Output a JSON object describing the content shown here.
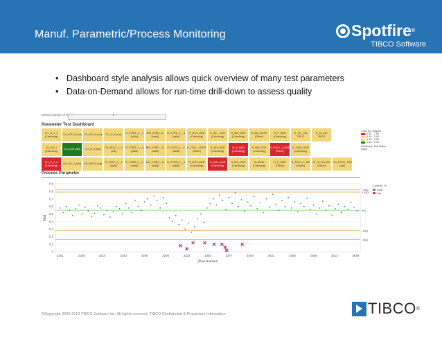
{
  "header": {
    "title": "Manuf. Parametric/Process Monitoring",
    "logo_main": "Spotfire",
    "logo_reg": "®",
    "logo_sub": "TIBCO Software"
  },
  "bullets": [
    "Dashboard style analysis allows quick overview of many test parameters",
    "Data-on-Demand allows for run-time drill-down to assess quality"
  ],
  "dashboard": {
    "select_label": "Select number of sigma:",
    "slider_value": "3",
    "title": "Parameter Test Dashboard",
    "tiles": [
      [
        {
          "t": "CH_N_1_2 (Checking)",
          "c": "y"
        },
        {
          "t": "CH_HTF_5 (cat)",
          "c": "y"
        },
        {
          "t": "CH_NO_6 (cat)",
          "c": "y"
        },
        {
          "t": "CH_P_6 (cat)",
          "c": "y"
        },
        {
          "t": "R_VTRD_2__4 (Valid)",
          "c": "y"
        },
        {
          "t": "MH_VTRD_12 (Valid)",
          "c": "y"
        },
        {
          "t": "R_VTRD_2__4 (Valid)",
          "c": "y"
        },
        {
          "t": "R_HTR_DDR (Checking)",
          "c": "y"
        },
        {
          "t": "R_HE__DDR (Checking)",
          "c": "y"
        },
        {
          "t": "R_MD_DDR (Checking)",
          "c": "y"
        },
        {
          "t": "R_MD_BUTR (Other)",
          "c": "y"
        },
        {
          "t": "R_P_DDR (Checking)",
          "c": "y"
        },
        {
          "t": "R_TA__BA TBCO",
          "c": "y"
        },
        {
          "t": "R_TA_BH TBCO",
          "c": "y"
        },
        {
          "t": "",
          "c": "blank"
        }
      ],
      [
        {
          "t": "CH_N1_2 (Checking)",
          "c": "y"
        },
        {
          "t": "CH_LDD (cat)",
          "c": "g"
        },
        {
          "t": "CH_R_6 (cat)",
          "c": "y"
        },
        {
          "t": "CH_POLY_1_2 (cat)",
          "c": "y"
        },
        {
          "t": "R_VTRD_2__4 (Valid)",
          "c": "y"
        },
        {
          "t": "MH_VTRF__12 (Valid)",
          "c": "y"
        },
        {
          "t": "P_VTRF_2__4 (Valid)",
          "c": "y"
        },
        {
          "t": "R_CDD__SPDR (Other)",
          "c": "y"
        },
        {
          "t": "R_NR_DDR (Checking)",
          "c": "y"
        },
        {
          "t": "R_N_DDR (Checking)",
          "c": "r"
        },
        {
          "t": "R_NM_DDR (Checking)",
          "c": "y"
        },
        {
          "t": "R_POLY_1_DDR (Other)",
          "c": "r"
        },
        {
          "t": "R_VMA_DDR (Checking)",
          "c": "y"
        },
        {
          "t": "",
          "c": "blank"
        },
        {
          "t": "",
          "c": "blank"
        }
      ],
      [
        {
          "t": "CH_N_1_2 (Checking)",
          "c": "r"
        },
        {
          "t": "CH_M1_2 (cat)",
          "c": "y"
        },
        {
          "t": "CH_NPLS (cat)",
          "c": "y"
        },
        {
          "t": "R_VTRF_2__4 (Valid)",
          "c": "y"
        },
        {
          "t": "R_VTRD_2__4 (Valid)",
          "c": "y"
        },
        {
          "t": "MH_VTRD__12 (Valid)",
          "c": "y"
        },
        {
          "t": "R_VTRD_2__4 (Valid)",
          "c": "y"
        },
        {
          "t": "R_NTR_DDR (Checking)",
          "c": "y"
        },
        {
          "t": "R_LDD_DDR (Checking)",
          "c": "r"
        },
        {
          "t": "R_MD_DDR (Checking)",
          "c": "y"
        },
        {
          "t": "R_NWID (Checking)",
          "c": "y"
        },
        {
          "t": "R_P_DDR (Other)",
          "c": "y"
        },
        {
          "t": "R_POLY_1_DD (Other)",
          "c": "y"
        },
        {
          "t": "R_TA_BH_DD (Other)",
          "c": "y"
        },
        {
          "t": "CH_ETCH_TRD (cat)",
          "c": "y"
        }
      ]
    ],
    "legend_title": "Color by: Oligons",
    "legend_items": [
      {
        "label": "0.00 - 7.00",
        "color": "#d9262c"
      },
      {
        "label": "0.00 - 3.00",
        "color": "#f2d77a"
      },
      {
        "label": "0.00 - 2.00",
        "color": "#f2d77a"
      },
      {
        "label": "0.00 - 0.00",
        "color": "#1f7a1f"
      }
    ],
    "legend_note": "Hierarchy: Test Name Label",
    "process_title": "Process Parameter"
  },
  "chart_data": {
    "type": "scatter",
    "title": "Process Parameter",
    "xlabel": "(Row Number)",
    "ylabel": "Mat",
    "ylim": [
      0.0,
      0.9
    ],
    "yticks": [
      "0.9",
      "0.8",
      "0.7",
      "0.6",
      "0.5",
      "0.4",
      "0.3",
      "0.2",
      "0.1",
      "0"
    ],
    "xticks": [
      "3161",
      "3188",
      "3215",
      "3242",
      "3269",
      "3296",
      "3323",
      "3350",
      "3377",
      "3404",
      "3431",
      "3458",
      "3485",
      "3512",
      "3539"
    ],
    "reference_lines": [
      {
        "label": "+3sig",
        "value": 0.82,
        "color": "#d9a55e"
      },
      {
        "label": "+1sig",
        "value": 0.79,
        "color": "#d9a55e"
      },
      {
        "label": "avg",
        "value": 0.55,
        "color": "#7ac46a"
      },
      {
        "label": "-1sig",
        "value": 0.28,
        "color": "#d9a55e"
      },
      {
        "label": "-3sig",
        "value": 0.16,
        "color": "#d9a55e"
      }
    ],
    "legend_title": "Color by: Oligons",
    "legend": [
      {
        "label": "Pass",
        "color": "#4a7fb5"
      },
      {
        "label": "Fail",
        "color": "#c8357e"
      }
    ],
    "fail_points": [
      {
        "x": 3315,
        "y": 0.08
      },
      {
        "x": 3323,
        "y": 0.04
      },
      {
        "x": 3331,
        "y": 0.12
      },
      {
        "x": 3346,
        "y": 0.12
      },
      {
        "x": 3358,
        "y": 0.1
      },
      {
        "x": 3368,
        "y": 0.1
      },
      {
        "x": 3372,
        "y": 0.06
      },
      {
        "x": 3374,
        "y": 0.02
      },
      {
        "x": 3394,
        "y": 0.1
      }
    ],
    "pass_points": [
      {
        "x": 3161,
        "y": 0.58
      },
      {
        "x": 3165,
        "y": 0.52
      },
      {
        "x": 3169,
        "y": 0.6
      },
      {
        "x": 3173,
        "y": 0.55
      },
      {
        "x": 3177,
        "y": 0.48
      },
      {
        "x": 3181,
        "y": 0.57
      },
      {
        "x": 3185,
        "y": 0.62
      },
      {
        "x": 3189,
        "y": 0.5
      },
      {
        "x": 3193,
        "y": 0.59
      },
      {
        "x": 3197,
        "y": 0.54
      },
      {
        "x": 3201,
        "y": 0.47
      },
      {
        "x": 3205,
        "y": 0.51
      },
      {
        "x": 3209,
        "y": 0.61
      },
      {
        "x": 3213,
        "y": 0.58
      },
      {
        "x": 3217,
        "y": 0.49
      },
      {
        "x": 3221,
        "y": 0.55
      },
      {
        "x": 3225,
        "y": 0.46
      },
      {
        "x": 3229,
        "y": 0.53
      },
      {
        "x": 3233,
        "y": 0.6
      },
      {
        "x": 3237,
        "y": 0.57
      },
      {
        "x": 3241,
        "y": 0.5
      },
      {
        "x": 3245,
        "y": 0.64
      },
      {
        "x": 3249,
        "y": 0.58
      },
      {
        "x": 3253,
        "y": 0.52
      },
      {
        "x": 3257,
        "y": 0.68
      },
      {
        "x": 3261,
        "y": 0.6
      },
      {
        "x": 3265,
        "y": 0.55
      },
      {
        "x": 3269,
        "y": 0.66
      },
      {
        "x": 3273,
        "y": 0.7
      },
      {
        "x": 3277,
        "y": 0.62
      },
      {
        "x": 3281,
        "y": 0.74
      },
      {
        "x": 3285,
        "y": 0.68
      },
      {
        "x": 3289,
        "y": 0.58
      },
      {
        "x": 3293,
        "y": 0.72
      },
      {
        "x": 3297,
        "y": 0.64
      },
      {
        "x": 3301,
        "y": 0.45
      },
      {
        "x": 3305,
        "y": 0.4
      },
      {
        "x": 3309,
        "y": 0.48
      },
      {
        "x": 3313,
        "y": 0.36
      },
      {
        "x": 3317,
        "y": 0.42
      },
      {
        "x": 3321,
        "y": 0.3
      },
      {
        "x": 3325,
        "y": 0.38
      },
      {
        "x": 3329,
        "y": 0.26
      },
      {
        "x": 3333,
        "y": 0.33
      },
      {
        "x": 3337,
        "y": 0.44
      },
      {
        "x": 3341,
        "y": 0.5
      },
      {
        "x": 3345,
        "y": 0.39
      },
      {
        "x": 3349,
        "y": 0.58
      },
      {
        "x": 3353,
        "y": 0.64
      },
      {
        "x": 3357,
        "y": 0.7
      },
      {
        "x": 3361,
        "y": 0.62
      },
      {
        "x": 3365,
        "y": 0.75
      },
      {
        "x": 3369,
        "y": 0.68
      },
      {
        "x": 3373,
        "y": 0.56
      },
      {
        "x": 3377,
        "y": 0.72
      },
      {
        "x": 3381,
        "y": 0.64
      },
      {
        "x": 3385,
        "y": 0.78
      },
      {
        "x": 3389,
        "y": 0.6
      },
      {
        "x": 3393,
        "y": 0.69
      },
      {
        "x": 3397,
        "y": 0.54
      },
      {
        "x": 3401,
        "y": 0.66
      },
      {
        "x": 3405,
        "y": 0.61
      },
      {
        "x": 3409,
        "y": 0.73
      },
      {
        "x": 3413,
        "y": 0.57
      },
      {
        "x": 3417,
        "y": 0.65
      },
      {
        "x": 3421,
        "y": 0.52
      },
      {
        "x": 3425,
        "y": 0.7
      },
      {
        "x": 3429,
        "y": 0.59
      },
      {
        "x": 3433,
        "y": 0.76
      },
      {
        "x": 3437,
        "y": 0.63
      },
      {
        "x": 3441,
        "y": 0.55
      },
      {
        "x": 3445,
        "y": 0.68
      },
      {
        "x": 3449,
        "y": 0.6
      },
      {
        "x": 3453,
        "y": 0.72
      },
      {
        "x": 3457,
        "y": 0.58
      },
      {
        "x": 3461,
        "y": 0.66
      },
      {
        "x": 3465,
        "y": 0.53
      },
      {
        "x": 3469,
        "y": 0.64
      },
      {
        "x": 3473,
        "y": 0.6
      },
      {
        "x": 3477,
        "y": 0.71
      },
      {
        "x": 3481,
        "y": 0.56
      },
      {
        "x": 3485,
        "y": 0.62
      },
      {
        "x": 3489,
        "y": 0.5
      },
      {
        "x": 3493,
        "y": 0.58
      },
      {
        "x": 3497,
        "y": 0.67
      },
      {
        "x": 3501,
        "y": 0.55
      },
      {
        "x": 3505,
        "y": 0.61
      },
      {
        "x": 3509,
        "y": 0.48
      },
      {
        "x": 3513,
        "y": 0.57
      },
      {
        "x": 3517,
        "y": 0.63
      },
      {
        "x": 3521,
        "y": 0.52
      },
      {
        "x": 3525,
        "y": 0.6
      },
      {
        "x": 3529,
        "y": 0.56
      },
      {
        "x": 3533,
        "y": 0.65
      },
      {
        "x": 3537,
        "y": 0.59
      },
      {
        "x": 3541,
        "y": 0.54
      }
    ]
  },
  "footer": {
    "copyright": "©Copyright 2000-2013 TIBCO Software Inc. All rights reserved. TIBCO Confidential & Proprietary Information."
  },
  "tibco_logo": {
    "text": "TIBCO",
    "reg": "®"
  }
}
